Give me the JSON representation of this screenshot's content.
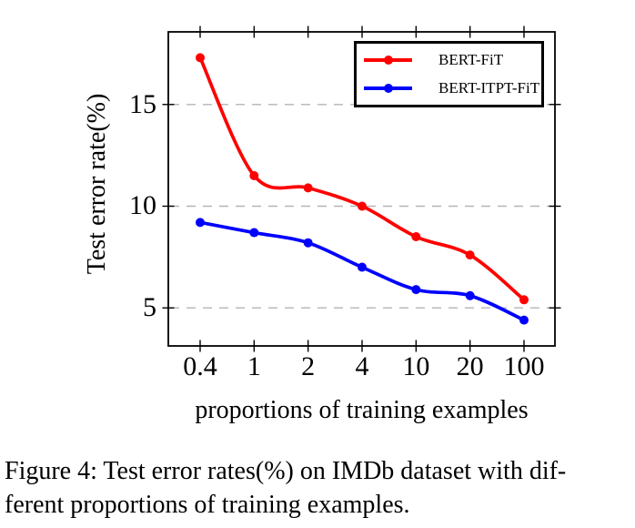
{
  "figure": {
    "caption_line1": "Figure 4: Test error rates(%) on IMDb dataset with dif-",
    "caption_line2": "ferent proportions of training examples."
  },
  "chart_data": {
    "type": "line",
    "title": "",
    "xlabel": "proportions of training examples",
    "ylabel": "Test error rate(%)",
    "categories": [
      "0.4",
      "1",
      "2",
      "4",
      "10",
      "20",
      "100"
    ],
    "yticks": [
      5,
      10,
      15
    ],
    "ylim": [
      3.13,
      18.57
    ],
    "grid": "dashed horizontal lines at yticks",
    "legend_position": "top-right inside plot",
    "series": [
      {
        "name": "BERT-FiT",
        "color": "#ff0000",
        "values": [
          17.3,
          11.5,
          10.9,
          10.0,
          8.5,
          7.6,
          5.4
        ]
      },
      {
        "name": "BERT-ITPT-FiT",
        "color": "#0000ff",
        "values": [
          9.2,
          8.7,
          8.2,
          7.0,
          5.9,
          5.6,
          4.4
        ]
      }
    ]
  },
  "colors": {
    "frame": "#000000",
    "grid": "#b5b5b5",
    "background": "#ffffff",
    "text": "#000000"
  }
}
